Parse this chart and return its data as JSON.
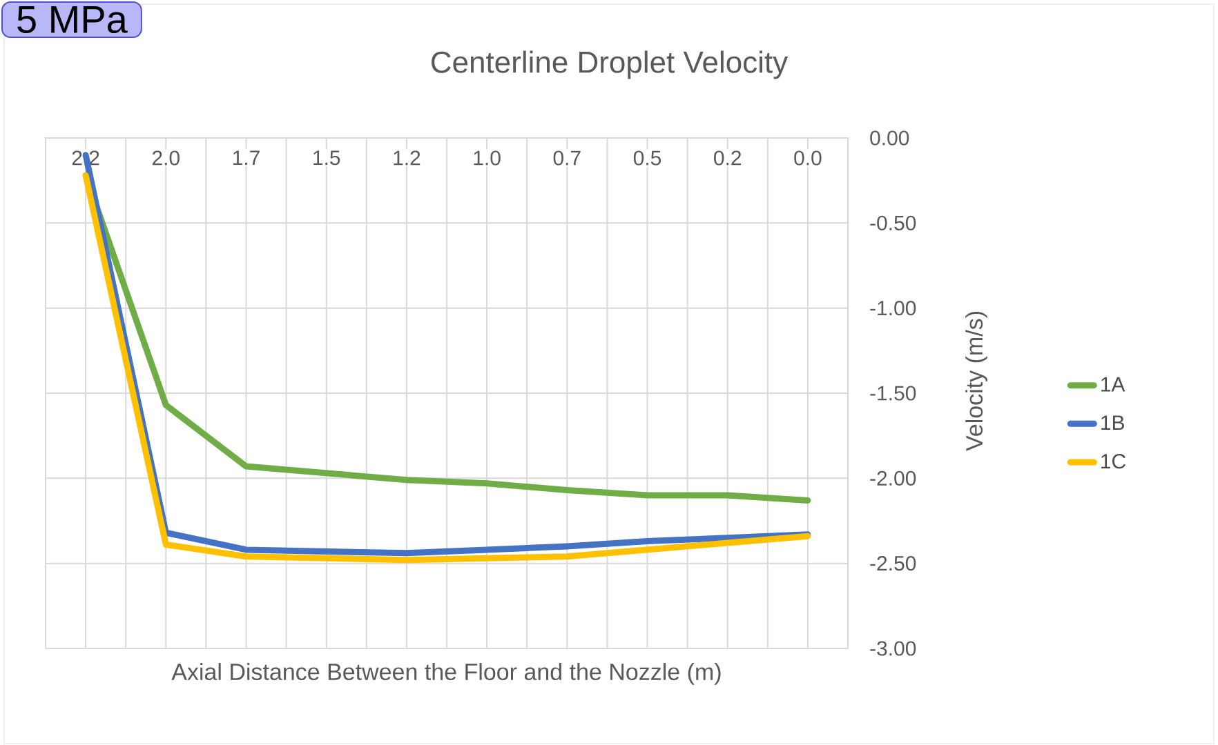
{
  "chart_data": {
    "type": "line",
    "title": "Centerline Droplet Velocity",
    "xlabel": "Axial Distance Between the Floor and the Nozzle (m)",
    "ylabel": "Velocity (m/s)",
    "annotations": [
      "5 MPa"
    ],
    "categories": [
      "2.2",
      "2.0",
      "1.7",
      "1.5",
      "1.2",
      "1.0",
      "0.7",
      "0.5",
      "0.2",
      "0.0"
    ],
    "series": [
      {
        "name": "1A",
        "color": "#70ad47",
        "values": [
          -0.22,
          -1.57,
          -1.93,
          -1.97,
          -2.01,
          -2.03,
          -2.07,
          -2.1,
          -2.1,
          -2.13
        ]
      },
      {
        "name": "1B",
        "color": "#4472c4",
        "values": [
          -0.1,
          -2.32,
          -2.42,
          -2.43,
          -2.44,
          -2.42,
          -2.4,
          -2.37,
          -2.35,
          -2.33
        ]
      },
      {
        "name": "1C",
        "color": "#ffc000",
        "values": [
          -0.22,
          -2.39,
          -2.46,
          -2.47,
          -2.48,
          -2.47,
          -2.46,
          -2.42,
          -2.38,
          -2.34
        ]
      }
    ],
    "ylim": [
      -3,
      0
    ],
    "yticks": [
      {
        "value": 0,
        "label": "0.00"
      },
      {
        "value": -0.5,
        "label": "-0.50"
      },
      {
        "value": -1,
        "label": "-1.00"
      },
      {
        "value": -1.5,
        "label": "-1.50"
      },
      {
        "value": -2,
        "label": "-2.00"
      },
      {
        "value": -2.5,
        "label": "-2.50"
      },
      {
        "value": -3,
        "label": "-3.00"
      }
    ],
    "grid": true,
    "legend": "right"
  }
}
